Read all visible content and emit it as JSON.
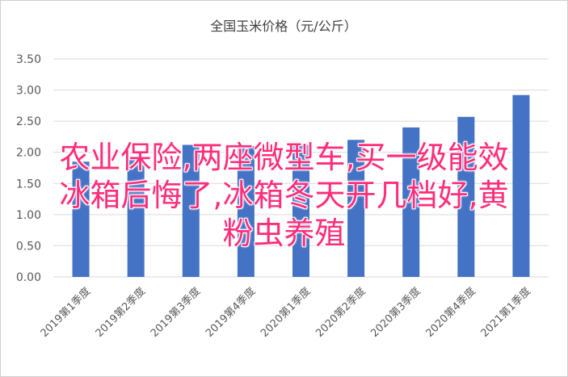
{
  "chart_data": {
    "type": "bar",
    "title": "全国玉米价格（元/公斤）",
    "categories": [
      "2019第1季度",
      "2019第2季度",
      "2019第3季度",
      "2019第4季度",
      "2020第1季度",
      "2020第2季度",
      "2020第3季度",
      "2020第4季度",
      "2021第1季度"
    ],
    "values": [
      1.85,
      1.92,
      2.12,
      2.1,
      2.12,
      2.2,
      2.4,
      2.57,
      2.92
    ],
    "ylim": [
      0,
      3.5
    ],
    "yticks": [
      "0.00",
      "0.50",
      "1.00",
      "1.50",
      "2.00",
      "2.50",
      "3.00",
      "3.50"
    ],
    "grid": true,
    "bar_color": "#4472c4"
  },
  "overlay": {
    "line1": "农业保险,两座微型车,买一级能效",
    "line2": "冰箱后悔了,冰箱冬天开几档好,黄",
    "line3": "粉虫养殖",
    "color": "#ff2d7a"
  }
}
